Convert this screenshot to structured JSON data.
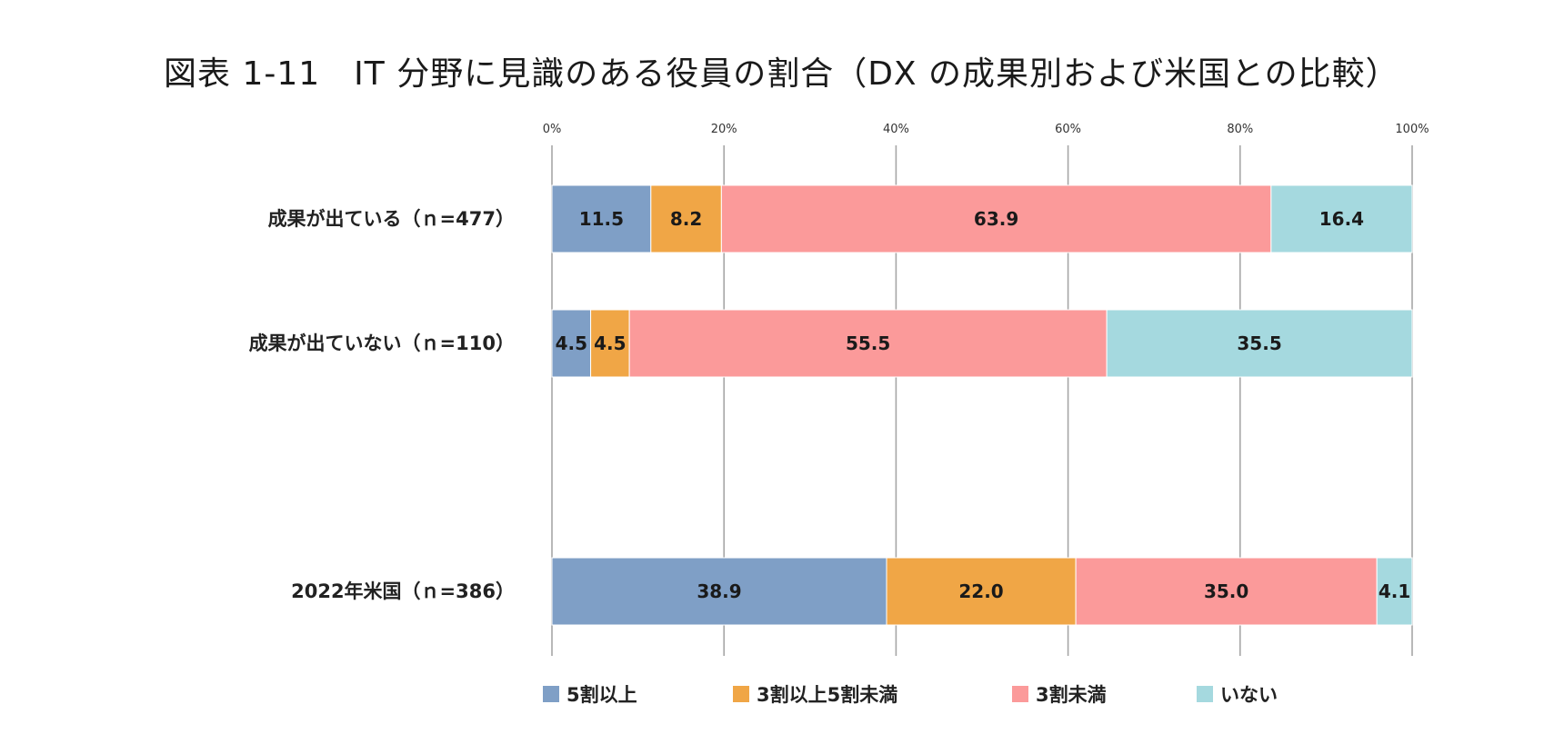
{
  "chart_data": {
    "type": "bar",
    "orientation": "horizontal",
    "stacked": true,
    "title": "図表 1-11　IT 分野に見識のある役員の割合（DX の成果別および米国との比較）",
    "categories": [
      "成果が出ている（ｎ=477）",
      "成果が出ていない（ｎ=110）",
      "2022年米国（ｎ=386）"
    ],
    "series": [
      {
        "name": "5割以上",
        "values": [
          11.5,
          4.5,
          38.9
        ],
        "color": "#7f9fc6"
      },
      {
        "name": "3割以上5割未満",
        "values": [
          8.2,
          4.5,
          22.0
        ],
        "color": "#f0a646"
      },
      {
        "name": "3割未満",
        "values": [
          63.9,
          55.5,
          35.0
        ],
        "color": "#fb9a9a"
      },
      {
        "name": "いない",
        "values": [
          16.4,
          35.5,
          4.1
        ],
        "color": "#a5d9df"
      }
    ],
    "value_labels": [
      [
        "11.5",
        "4.5",
        "38.9"
      ],
      [
        "8.2",
        "4.5",
        "22.0"
      ],
      [
        "63.9",
        "55.5",
        "35.0"
      ],
      [
        "16.4",
        "35.5",
        "4.1"
      ]
    ],
    "xlim": [
      0,
      100
    ],
    "xticks": [
      "0%",
      "20%",
      "40%",
      "60%",
      "80%",
      "100%"
    ],
    "grid": true,
    "legend_position": "bottom"
  }
}
